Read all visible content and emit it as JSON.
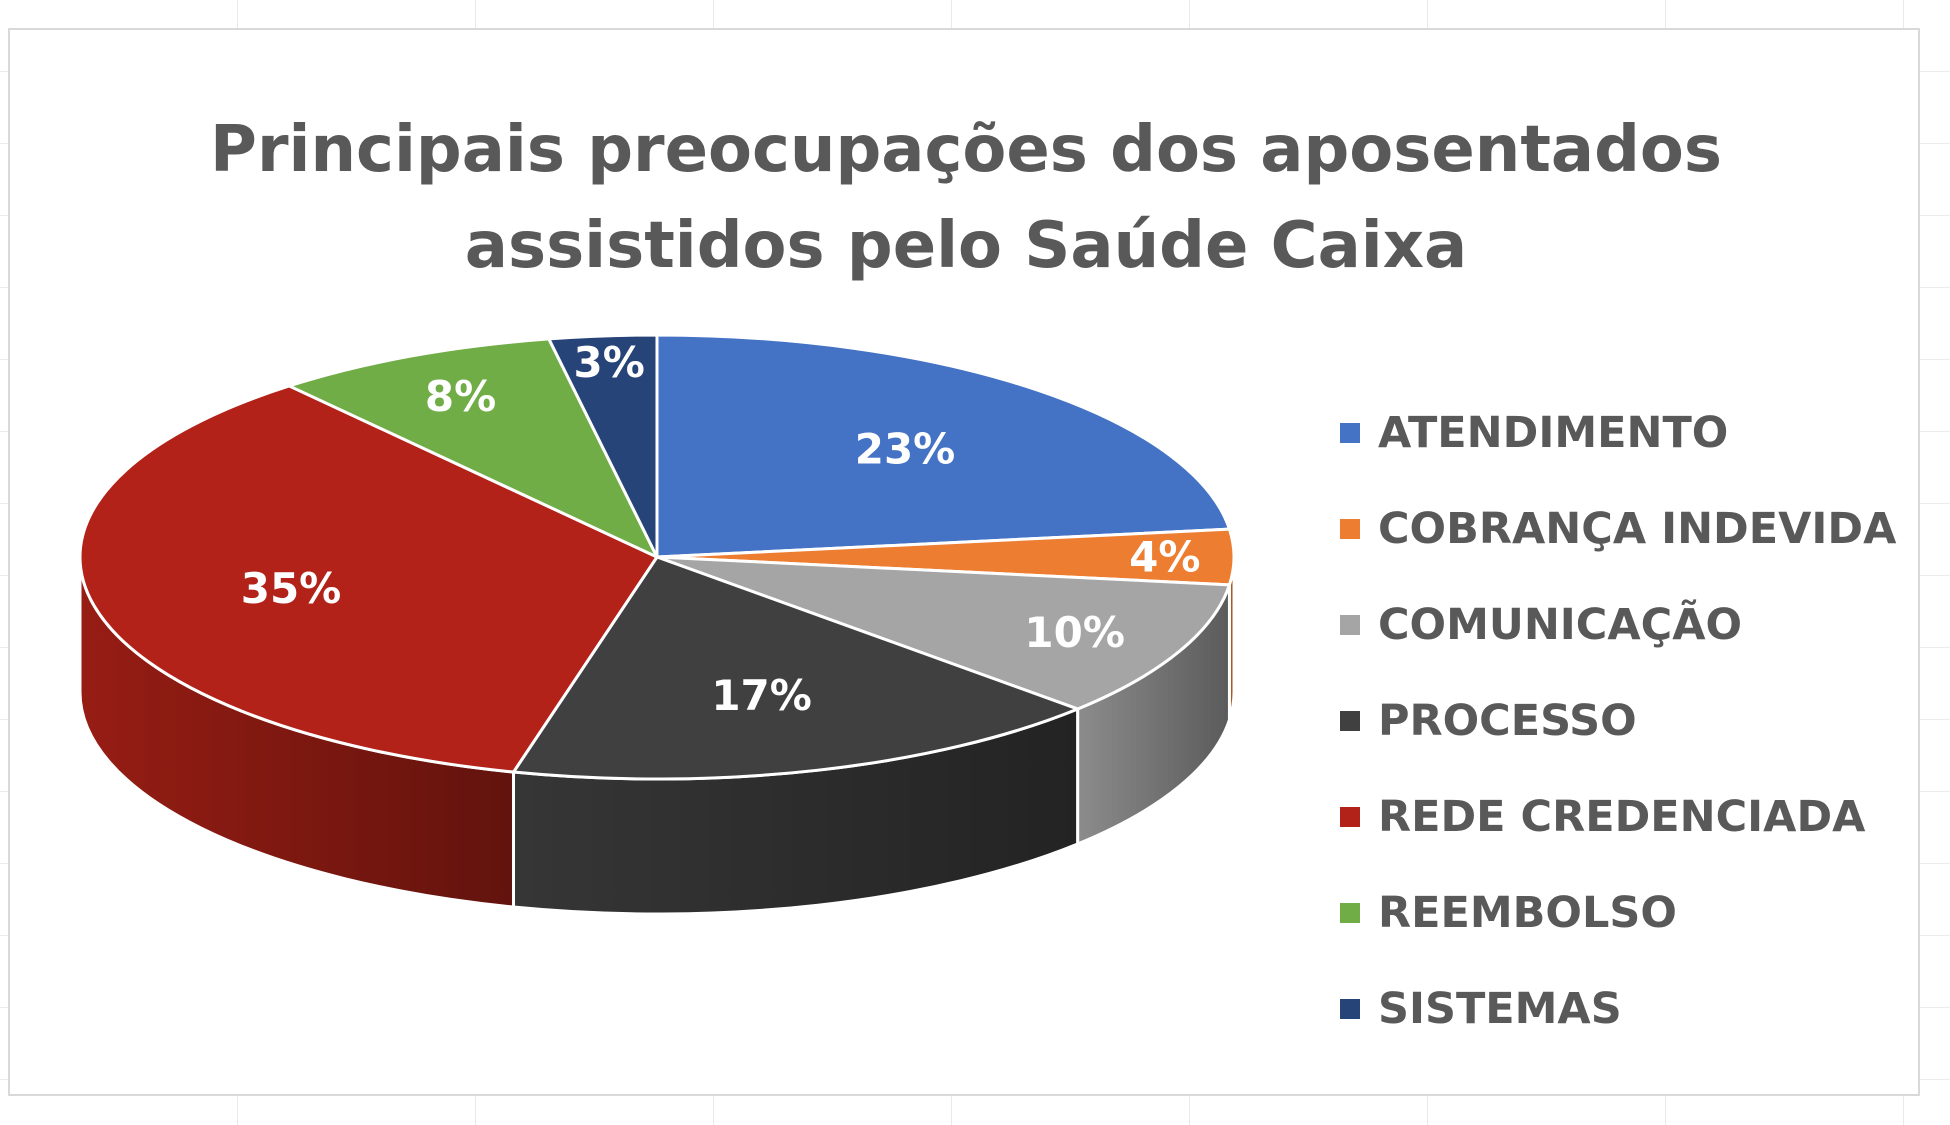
{
  "chart_data": {
    "type": "pie",
    "title_lines": [
      "Principais preocupações dos aposentados",
      "assistidos pelo Saúde Caixa"
    ],
    "categories": [
      "ATENDIMENTO",
      "COBRANÇA INDEVIDA",
      "COMUNICAÇÃO",
      "PROCESSO",
      "REDE CREDENCIADA",
      "REEMBOLSO",
      "SISTEMAS"
    ],
    "values": [
      23,
      4,
      10,
      17,
      35,
      8,
      3
    ],
    "data_labels": [
      "23%",
      "4%",
      "10%",
      "17%",
      "35%",
      "8%",
      "3%"
    ],
    "colors": [
      "#4472C4",
      "#ED7D31",
      "#A5A5A5",
      "#404040",
      "#B22218",
      "#70AD47",
      "#264478"
    ],
    "legend_position": "right",
    "style": "3d"
  }
}
